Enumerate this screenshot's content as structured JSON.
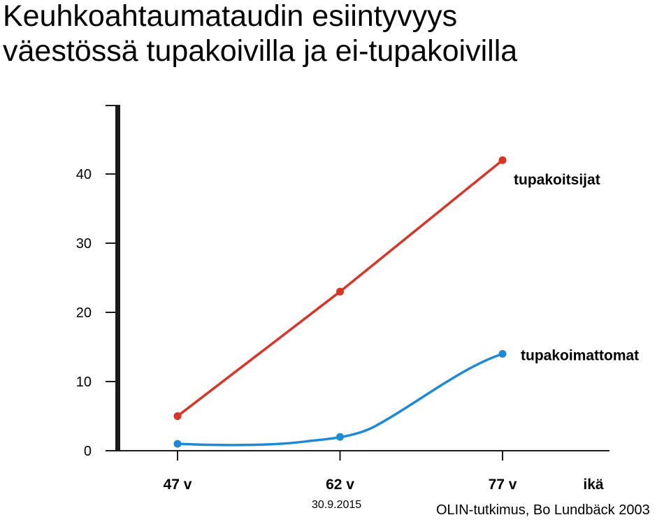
{
  "chart_data": {
    "type": "line",
    "title_lines": [
      "Keuhkoahtaumataudin esiintyvyys",
      "väestössä tupakoivilla ja ei-tupakoivilla"
    ],
    "xlabel": "ikä",
    "categories": [
      "47 v",
      "62 v",
      "77 v"
    ],
    "ylim": [
      0,
      50
    ],
    "yticks": [
      0,
      10,
      20,
      30,
      40
    ],
    "grid": false,
    "series": [
      {
        "name": "tupakoitsijat",
        "color": "#d93425",
        "values": [
          5,
          23,
          42
        ],
        "smooth": false
      },
      {
        "name": "tupakoimattomat",
        "color": "#1c8ad8",
        "values": [
          1,
          2,
          14
        ],
        "smooth": true
      }
    ]
  },
  "footer": {
    "date": "30.9.2015",
    "source": "OLIN-tutkimus, Bo Lundbäck 2003"
  }
}
